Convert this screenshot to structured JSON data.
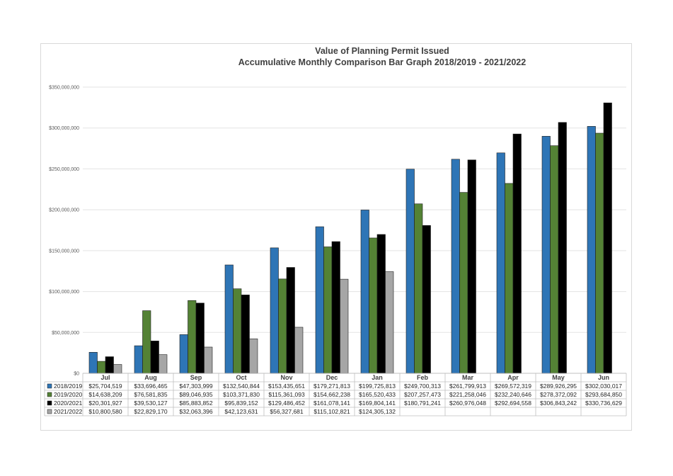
{
  "chart_data": {
    "type": "bar",
    "title": "Value of Planning Permit Issued",
    "subtitle": "Accumulative Monthly Comparison Bar Graph 2018/2019 - 2021/2022",
    "xlabel": "",
    "ylabel": "",
    "ylim": [
      0,
      350000000
    ],
    "ytick_labels": [
      "$0",
      "$50,000,000",
      "$100,000,000",
      "$150,000,000",
      "$200,000,000",
      "$250,000,000",
      "$300,000,000",
      "$350,000,000"
    ],
    "grid": true,
    "legend": "data-table-left",
    "categories": [
      "Jul",
      "Aug",
      "Sep",
      "Oct",
      "Nov",
      "Dec",
      "Jan",
      "Feb",
      "Mar",
      "Apr",
      "May",
      "Jun"
    ],
    "series": [
      {
        "name": "2018/2019",
        "color": "#2e75b6",
        "values": [
          25704519,
          33696465,
          47303999,
          132540844,
          153435651,
          179271813,
          199725813,
          249700313,
          261799913,
          269572319,
          289926295,
          302030017
        ],
        "labels": [
          "$25,704,519",
          "$33,696,465",
          "$47,303,999",
          "$132,540,844",
          "$153,435,651",
          "$179,271,813",
          "$199,725,813",
          "$249,700,313",
          "$261,799,913",
          "$269,572,319",
          "$289,926,295",
          "$302,030,017"
        ]
      },
      {
        "name": "2019/2020",
        "color": "#548235",
        "values": [
          14638209,
          76581835,
          89046935,
          103371830,
          115361093,
          154662238,
          165520433,
          207257473,
          221258046,
          232240646,
          278372092,
          293684850
        ],
        "labels": [
          "$14,638,209",
          "$76,581,835",
          "$89,046,935",
          "$103,371,830",
          "$115,361,093",
          "$154,662,238",
          "$165,520,433",
          "$207,257,473",
          "$221,258,046",
          "$232,240,646",
          "$278,372,092",
          "$293,684,850"
        ]
      },
      {
        "name": "2020/2021",
        "color": "#000000",
        "values": [
          20301927,
          39530127,
          85883852,
          95839152,
          129486452,
          161078141,
          169804141,
          180791241,
          260976048,
          292694558,
          306843242,
          330736629
        ],
        "labels": [
          "$20,301,927",
          "$39,530,127",
          "$85,883,852",
          "$95,839,152",
          "$129,486,452",
          "$161,078,141",
          "$169,804,141",
          "$180,791,241",
          "$260,976,048",
          "$292,694,558",
          "$306,843,242",
          "$330,736,629"
        ]
      },
      {
        "name": "2021/2022",
        "color": "#a6a6a6",
        "values": [
          10800580,
          22829170,
          32063396,
          42123631,
          56327681,
          115102821,
          124305132,
          null,
          null,
          null,
          null,
          null
        ],
        "labels": [
          "$10,800,580",
          "$22,829,170",
          "$32,063,396",
          "$42,123,631",
          "$56,327,681",
          "$115,102,821",
          "$124,305,132",
          "",
          "",
          "",
          "",
          ""
        ]
      }
    ]
  }
}
